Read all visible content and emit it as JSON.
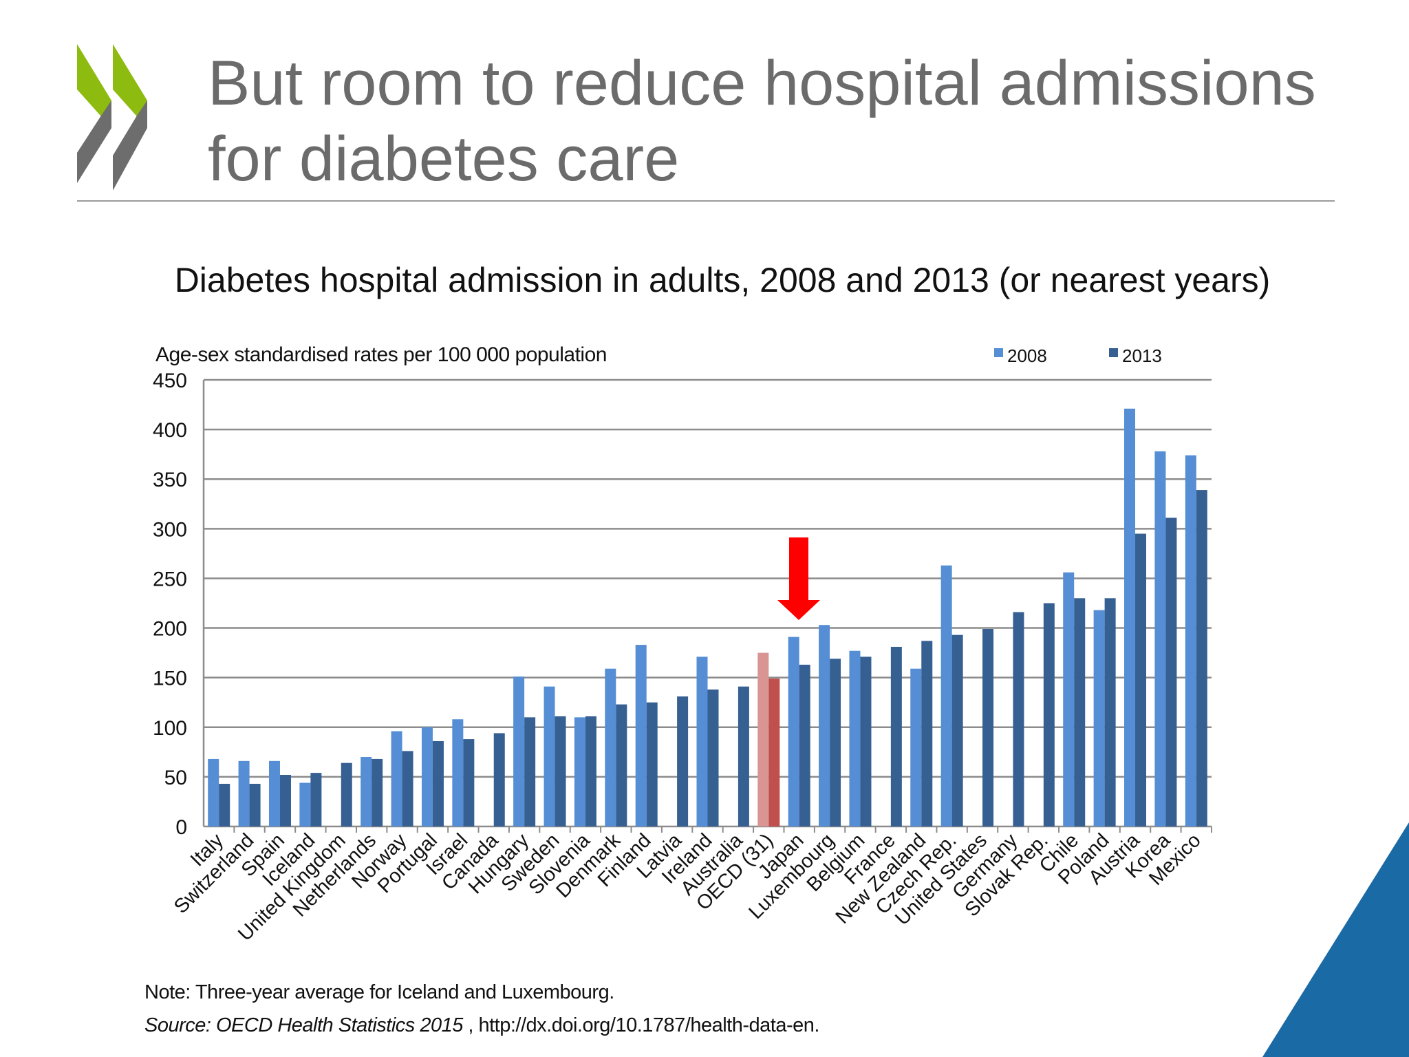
{
  "slide": {
    "title_line1": "But room to reduce hospital admissions",
    "title_line2": "for diabetes care",
    "note": "Note: Three-year average for Iceland and Luxembourg.",
    "source_italic": "Source: OECD Health Statistics 2015",
    "source_rest": " , http://dx.doi.org/10.1787/health-data-en.",
    "colors": {
      "logo_green": "#8dbb10",
      "logo_gray": "#6d6d6d",
      "accent_blue": "#1a6aa6",
      "arrow": "#ff0000"
    }
  },
  "chart_data": {
    "type": "bar",
    "title": "Diabetes hospital admission in adults, 2008 and 2013 (or nearest years)",
    "ylabel": "Age-sex standardised rates per 100 000 population",
    "xlabel": "",
    "ylim": [
      0,
      450
    ],
    "yticks": [
      0,
      50,
      100,
      150,
      200,
      250,
      300,
      350,
      400,
      450
    ],
    "grid": true,
    "legend_position": "top-right",
    "highlight_category": "OECD (31)",
    "highlight_colors": {
      "2008": "#d99594",
      "2013": "#c0504d"
    },
    "categories": [
      "Italy",
      "Switzerland",
      "Spain",
      "Iceland",
      "United Kingdom",
      "Netherlands",
      "Norway",
      "Portugal",
      "Israel",
      "Canada",
      "Hungary",
      "Sweden",
      "Slovenia",
      "Denmark",
      "Finland",
      "Latvia",
      "Ireland",
      "Australia",
      "OECD (31)",
      "Japan",
      "Luxembourg",
      "Belgium",
      "France",
      "New Zealand",
      "Czech Rep.",
      "United States",
      "Germany",
      "Slovak Rep.",
      "Chile",
      "Poland",
      "Austria",
      "Korea",
      "Mexico"
    ],
    "series": [
      {
        "name": "2008",
        "color": "#558ed5",
        "values": [
          68,
          66,
          66,
          44,
          null,
          70,
          96,
          100,
          108,
          null,
          151,
          141,
          110,
          159,
          183,
          null,
          171,
          null,
          175,
          191,
          203,
          177,
          null,
          159,
          263,
          null,
          null,
          null,
          256,
          218,
          421,
          378,
          374
        ]
      },
      {
        "name": "2013",
        "color": "#376092",
        "values": [
          43,
          43,
          52,
          54,
          64,
          68,
          76,
          86,
          88,
          94,
          110,
          111,
          111,
          123,
          125,
          131,
          138,
          141,
          149,
          163,
          169,
          171,
          181,
          187,
          193,
          199,
          216,
          225,
          230,
          230,
          295,
          311,
          339
        ]
      }
    ]
  }
}
